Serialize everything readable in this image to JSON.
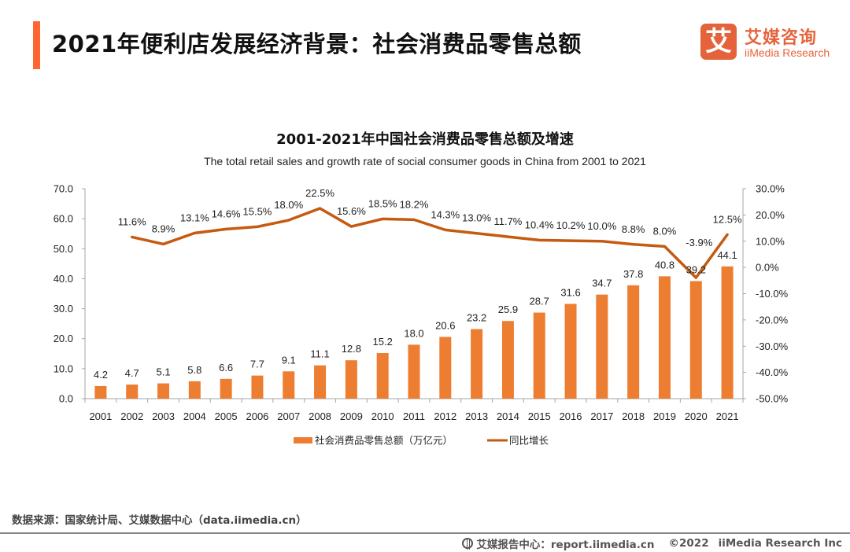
{
  "header": {
    "title": "2021年便利店发展经济背景：社会消费品零售总额",
    "logo_mark": "艾",
    "logo_cn": "艾媒咨询",
    "logo_en": "iiMedia Research"
  },
  "colors": {
    "accent": "#ff6633",
    "bar": "#ed7d31",
    "line": "#c55a11",
    "logo": "#e5633a",
    "axis": "#a6a6a6"
  },
  "chart_data": {
    "type": "bar",
    "title": "2001-2021年中国社会消费品零售总额及增速",
    "subtitle": "The total retail sales and growth rate of social consumer goods  in China from 2001 to 2021",
    "categories": [
      "2001",
      "2002",
      "2003",
      "2004",
      "2005",
      "2006",
      "2007",
      "2008",
      "2009",
      "2010",
      "2011",
      "2012",
      "2013",
      "2014",
      "2015",
      "2016",
      "2017",
      "2018",
      "2019",
      "2020",
      "2021"
    ],
    "series": [
      {
        "name": "社会消费品零售总额（万亿元）",
        "type": "bar",
        "axis": "left",
        "values": [
          4.2,
          4.7,
          5.1,
          5.8,
          6.6,
          7.7,
          9.1,
          11.1,
          12.8,
          15.2,
          18.0,
          20.6,
          23.2,
          25.9,
          28.7,
          31.6,
          34.7,
          37.8,
          40.8,
          39.2,
          44.1
        ],
        "labels": [
          "4.2",
          "4.7",
          "5.1",
          "5.8",
          "6.6",
          "7.7",
          "9.1",
          "11.1",
          "12.8",
          "15.2",
          "18.0",
          "20.6",
          "23.2",
          "25.9",
          "28.7",
          "31.6",
          "34.7",
          "37.8",
          "40.8",
          "39.2",
          "44.1"
        ]
      },
      {
        "name": "同比增长",
        "type": "line",
        "axis": "right",
        "values": [
          null,
          11.6,
          8.9,
          13.1,
          14.6,
          15.5,
          18.0,
          22.5,
          15.6,
          18.5,
          18.2,
          14.3,
          13.0,
          11.7,
          10.4,
          10.2,
          10.0,
          8.8,
          8.0,
          -3.9,
          12.5
        ],
        "labels": [
          "",
          "11.6%",
          "8.9%",
          "13.1%",
          "14.6%",
          "15.5%",
          "18.0%",
          "22.5%",
          "15.6%",
          "18.5%",
          "18.2%",
          "14.3%",
          "13.0%",
          "11.7%",
          "10.4%",
          "10.2%",
          "10.0%",
          "8.8%",
          "8.0%",
          "-3.9%",
          "12.5%"
        ]
      }
    ],
    "y_left": {
      "range": [
        0,
        70
      ],
      "ticks": [
        0,
        10,
        20,
        30,
        40,
        50,
        60,
        70
      ],
      "tick_labels": [
        "0.0",
        "10.0",
        "20.0",
        "30.0",
        "40.0",
        "50.0",
        "60.0",
        "70.0"
      ]
    },
    "y_right": {
      "range": [
        -50,
        30
      ],
      "ticks": [
        -50,
        -40,
        -30,
        -20,
        -10,
        0,
        10,
        20,
        30
      ],
      "tick_labels": [
        "-50.0%",
        "-40.0%",
        "-30.0%",
        "-20.0%",
        "-10.0%",
        "0.0%",
        "10.0%",
        "20.0%",
        "30.0%"
      ]
    },
    "xlabel": "",
    "ylabel": "",
    "grid": false,
    "legend": {
      "position": "bottom",
      "items": [
        "社会消费品零售总额（万亿元）",
        "同比增长"
      ]
    }
  },
  "footer": {
    "source": "数据来源：国家统计局、艾媒数据中心（data.iimedia.cn）",
    "report_center": "艾媒报告中心：report.iimedia.cn",
    "copyright": "©2022",
    "company": "iiMedia Research  Inc"
  }
}
